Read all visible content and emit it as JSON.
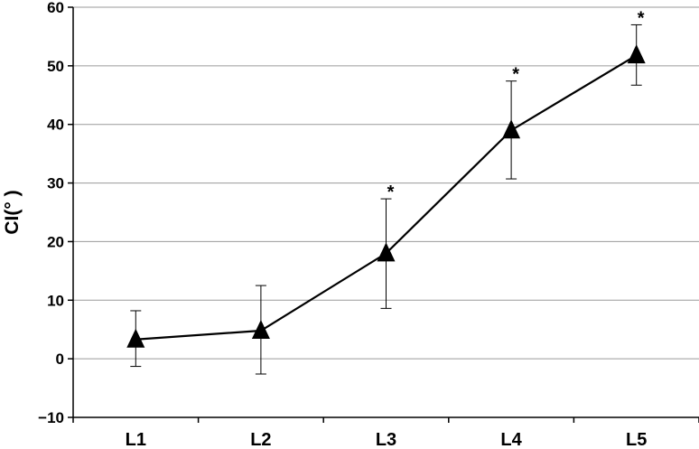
{
  "chart_data": {
    "type": "line",
    "title": "",
    "xlabel": "",
    "ylabel": "CI(° )",
    "categories": [
      "L1",
      "L2",
      "L3",
      "L4",
      "L5"
    ],
    "series": [
      {
        "values": [
          3.3,
          4.8,
          18.0,
          39.0,
          51.8
        ],
        "error_upper": [
          8.2,
          12.5,
          27.3,
          47.4,
          57.0
        ],
        "error_lower": [
          -1.3,
          -2.6,
          8.6,
          30.7,
          46.7
        ],
        "marker": "triangle",
        "color": "#000000"
      }
    ],
    "annotations": [
      "",
      "",
      "*",
      "*",
      "*"
    ],
    "ylim": [
      -10,
      60
    ],
    "yticks": [
      -10,
      0,
      10,
      20,
      30,
      40,
      50,
      60
    ],
    "grid": true
  }
}
